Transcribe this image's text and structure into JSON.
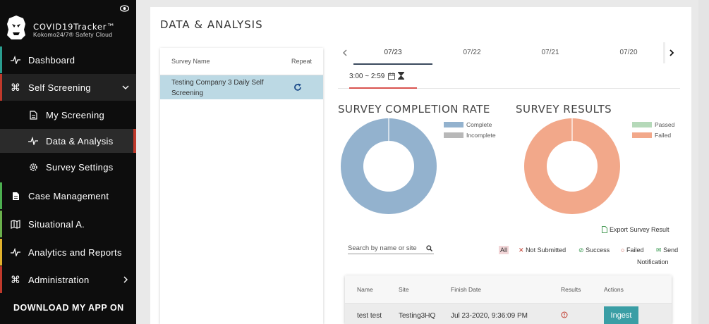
{
  "brand": {
    "title": "COVID19Tracker™",
    "subtitle": "Kokomo24/7® Safety Cloud"
  },
  "sidebar": {
    "items": [
      {
        "label": "Dashboard",
        "icon": "pulse-icon",
        "accent": "#2a9d8f"
      },
      {
        "label": "Self Screening",
        "icon": "command-icon",
        "accent": "#c0392b"
      },
      {
        "label": "My Screening",
        "icon": "file-icon"
      },
      {
        "label": "Data & Analysis",
        "icon": "pulse-icon",
        "accent": "#c0392b"
      },
      {
        "label": "Survey Settings",
        "icon": "gear-icon"
      },
      {
        "label": "Case Management",
        "icon": "file-icon",
        "accent": "#4caf50"
      },
      {
        "label": "Situational A.",
        "icon": "map-icon",
        "accent": "#6ab04c"
      },
      {
        "label": "Analytics and Reports",
        "icon": "pulse-icon",
        "accent": "#e1b12c"
      },
      {
        "label": "Administration",
        "icon": "command-icon",
        "accent": "#c0392b"
      }
    ],
    "download": "DOWNLOAD MY APP ON"
  },
  "main": {
    "title": "DATA & ANALYSIS",
    "survey_list": {
      "col_name": "Survey Name",
      "col_repeat": "Repeat",
      "rows": [
        {
          "name": "Testing Company 3 Daily Self Screening"
        }
      ]
    },
    "date_tabs": [
      "07/23",
      "07/22",
      "07/21",
      "07/20"
    ],
    "active_date": "07/23",
    "time_slot": "3:00 ~ 2:59",
    "completion": {
      "title": "SURVEY COMPLETION RATE",
      "legend": [
        "Complete",
        "Incomplete"
      ]
    },
    "results": {
      "title": "SURVEY RESULTS",
      "legend": [
        "Passed",
        "Failed"
      ]
    },
    "export_label": "Export Survey Result",
    "search_placeholder": "Search by name or site",
    "filters": {
      "all": "All",
      "not_submitted": "Not Submitted",
      "success": "Success",
      "failed": "Failed",
      "send": "Send",
      "notification": "Notification"
    },
    "table": {
      "headers": {
        "name": "Name",
        "site": "Site",
        "finish": "Finish Date",
        "results": "Results",
        "actions": "Actions"
      },
      "rows": [
        {
          "name": "test test",
          "site": "Testing3HQ",
          "finish": "Jul 23-2020, 9:36:09 PM",
          "action": "Ingest"
        }
      ]
    }
  },
  "chart_data": [
    {
      "type": "pie",
      "title": "SURVEY COMPLETION RATE",
      "categories": [
        "Complete",
        "Incomplete"
      ],
      "values": [
        100,
        0
      ],
      "colors": [
        "#93b2ce",
        "#b8b8b8"
      ]
    },
    {
      "type": "pie",
      "title": "SURVEY RESULTS",
      "categories": [
        "Passed",
        "Failed"
      ],
      "values": [
        0,
        100
      ],
      "colors": [
        "#b5d9b9",
        "#f2a88a"
      ]
    }
  ]
}
